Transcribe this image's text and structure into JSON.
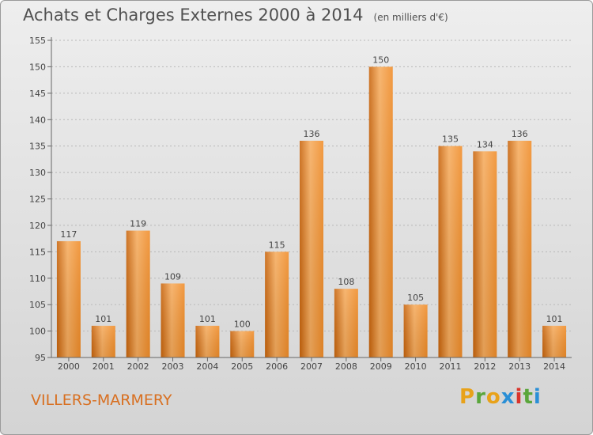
{
  "title": "Achats et Charges Externes 2000 à 2014",
  "subtitle": "(en milliers d'€)",
  "town": "VILLERS-MARMERY",
  "logo": {
    "letters": [
      "P",
      "r",
      "o",
      "x",
      "i",
      "t",
      "i"
    ],
    "colors": [
      "#e8a21a",
      "#5aa63b",
      "#e8a21a",
      "#2a8fd6",
      "#d9342b",
      "#5aa63b",
      "#2a8fd6"
    ]
  },
  "colors": {
    "bar": "#f08c28",
    "bar_light": "#f6ac5e",
    "bar_dark": "#c8640c",
    "grid": "#b8b8b8",
    "town": "#d86f20"
  },
  "chart_data": {
    "type": "bar",
    "title": "Achats et Charges Externes 2000 à 2014",
    "subtitle": "(en milliers d'€)",
    "categories": [
      "2000",
      "2001",
      "2002",
      "2003",
      "2004",
      "2005",
      "2006",
      "2007",
      "2008",
      "2009",
      "2010",
      "2011",
      "2012",
      "2013",
      "2014"
    ],
    "values": [
      117,
      101,
      119,
      109,
      101,
      100,
      115,
      136,
      108,
      150,
      105,
      135,
      134,
      136,
      101
    ],
    "ylim": [
      95,
      155
    ],
    "yticks": [
      95,
      100,
      105,
      110,
      115,
      120,
      125,
      130,
      135,
      140,
      145,
      150,
      155
    ],
    "grid": true,
    "data_labels": true
  }
}
